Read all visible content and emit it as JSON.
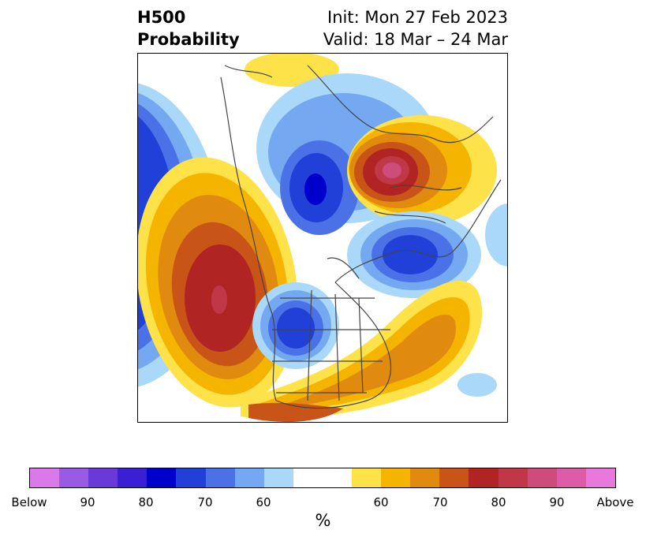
{
  "title": {
    "left_line1": "H500",
    "left_line2": "Probability",
    "right_line1": "Init: Mon 27 Feb 2023",
    "right_line2": "Valid: 18 Mar – 24 Mar"
  },
  "colorbar": {
    "below_colors": [
      "#d97ae8",
      "#9a5be4",
      "#6a3ad9",
      "#3a1fd4",
      "#0000cc",
      "#2140d8",
      "#4a72e6",
      "#74a8f0",
      "#a9d8f9"
    ],
    "neutral_color": "#ffffff",
    "above_colors": [
      "#fde24a",
      "#f5b400",
      "#e08a10",
      "#c85418",
      "#b02424",
      "#c03848",
      "#cd4c7c",
      "#dc5ca8",
      "#e878dc"
    ],
    "tick_labels": [
      "Below",
      "90",
      "80",
      "70",
      "60",
      "60",
      "70",
      "80",
      "90",
      "Above"
    ],
    "unit_label": "%"
  },
  "map": {
    "anomalies": [
      {
        "name": "west-pacific-trough",
        "sign": "below",
        "peak_level": 70
      },
      {
        "name": "northeast-pacific-ridge",
        "sign": "above",
        "peak_level": 90
      },
      {
        "name": "north-canada-trough",
        "sign": "below",
        "peak_level": 80
      },
      {
        "name": "siberia-ridge",
        "sign": "above",
        "peak_level": 90
      },
      {
        "name": "europe-trough",
        "sign": "below",
        "peak_level": 80
      },
      {
        "name": "central-canada-trough",
        "sign": "below",
        "peak_level": 80
      },
      {
        "name": "atlantic-ridge",
        "sign": "above",
        "peak_level": 70
      },
      {
        "name": "arctic-ridge",
        "sign": "above",
        "peak_level": 60
      }
    ]
  }
}
